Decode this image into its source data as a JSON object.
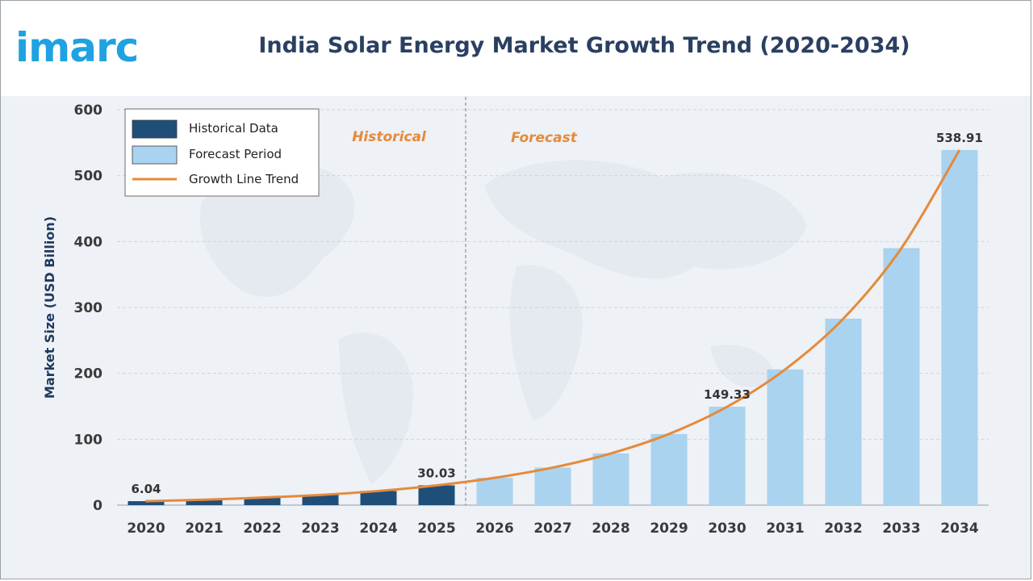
{
  "header": {
    "logo_text": "imarc",
    "title": "India Solar Energy Market Growth Trend (2020-2034)"
  },
  "colors": {
    "historical": "#1f4e79",
    "forecast": "#a9d3ef",
    "trend": "#e58a3a",
    "logo": "#1fa2e1",
    "title": "#2a3f62"
  },
  "legend": {
    "historical": "Historical Data",
    "forecast": "Forecast Period",
    "trend": "Growth Line Trend",
    "placement": "top-left"
  },
  "period_labels": {
    "historical": "Historical",
    "forecast": "Forecast"
  },
  "chart_data": {
    "type": "bar",
    "title": "India Solar Energy Market Growth Trend (2020-2034)",
    "xlabel": "",
    "ylabel": "Market Size (USD Billion)",
    "ylim": [
      0,
      600
    ],
    "yticks": [
      0,
      100,
      200,
      300,
      400,
      500,
      600
    ],
    "grid": true,
    "categories": [
      "2020",
      "2021",
      "2022",
      "2023",
      "2024",
      "2025",
      "2026",
      "2027",
      "2028",
      "2029",
      "2030",
      "2031",
      "2032",
      "2033",
      "2034"
    ],
    "series": [
      {
        "name": "Historical Data",
        "values": [
          6.04,
          8.2,
          11.5,
          15.5,
          21.5,
          30.03,
          null,
          null,
          null,
          null,
          null,
          null,
          null,
          null,
          null
        ]
      },
      {
        "name": "Forecast Period",
        "values": [
          null,
          null,
          null,
          null,
          null,
          null,
          41.5,
          57,
          78.5,
          108,
          149.33,
          206,
          283,
          390,
          538.91
        ]
      },
      {
        "name": "Growth Line Trend",
        "type": "line",
        "values": [
          6.04,
          8.2,
          11.5,
          15.5,
          21.5,
          30.03,
          41.5,
          57,
          78.5,
          108,
          149.33,
          206,
          283,
          390,
          538.91
        ]
      }
    ],
    "data_labels": [
      {
        "category": "2020",
        "text": "6.04"
      },
      {
        "category": "2025",
        "text": "30.03"
      },
      {
        "category": "2030",
        "text": "149.33"
      },
      {
        "category": "2034",
        "text": "538.91"
      }
    ],
    "historical_count": 6
  }
}
